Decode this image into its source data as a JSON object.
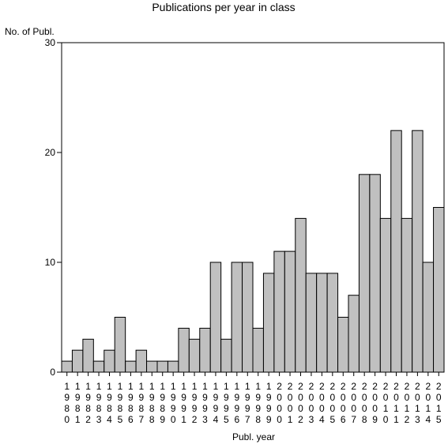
{
  "chart_data": {
    "type": "bar",
    "title": "Publications per year in class",
    "ylabel": "No. of Publ.",
    "xlabel": "Publ. year",
    "ylim": [
      0,
      30
    ],
    "yticks": [
      0,
      10,
      20,
      30
    ],
    "grid": false,
    "bar_color": "#c0c0c0",
    "categories": [
      "1980",
      "1981",
      "1982",
      "1983",
      "1984",
      "1985",
      "1986",
      "1987",
      "1988",
      "1989",
      "1990",
      "1991",
      "1992",
      "1993",
      "1994",
      "1995",
      "1996",
      "1997",
      "1998",
      "1999",
      "2000",
      "2001",
      "2002",
      "2003",
      "2004",
      "2005",
      "2006",
      "2007",
      "2008",
      "2009",
      "2010",
      "2011",
      "2012",
      "2013",
      "2014",
      "2015"
    ],
    "values": [
      1,
      2,
      3,
      1,
      2,
      5,
      1,
      2,
      1,
      1,
      1,
      4,
      3,
      4,
      10,
      3,
      10,
      10,
      4,
      9,
      11,
      11,
      14,
      9,
      9,
      9,
      5,
      7,
      18,
      18,
      14,
      22,
      14,
      22,
      10,
      15
    ]
  }
}
